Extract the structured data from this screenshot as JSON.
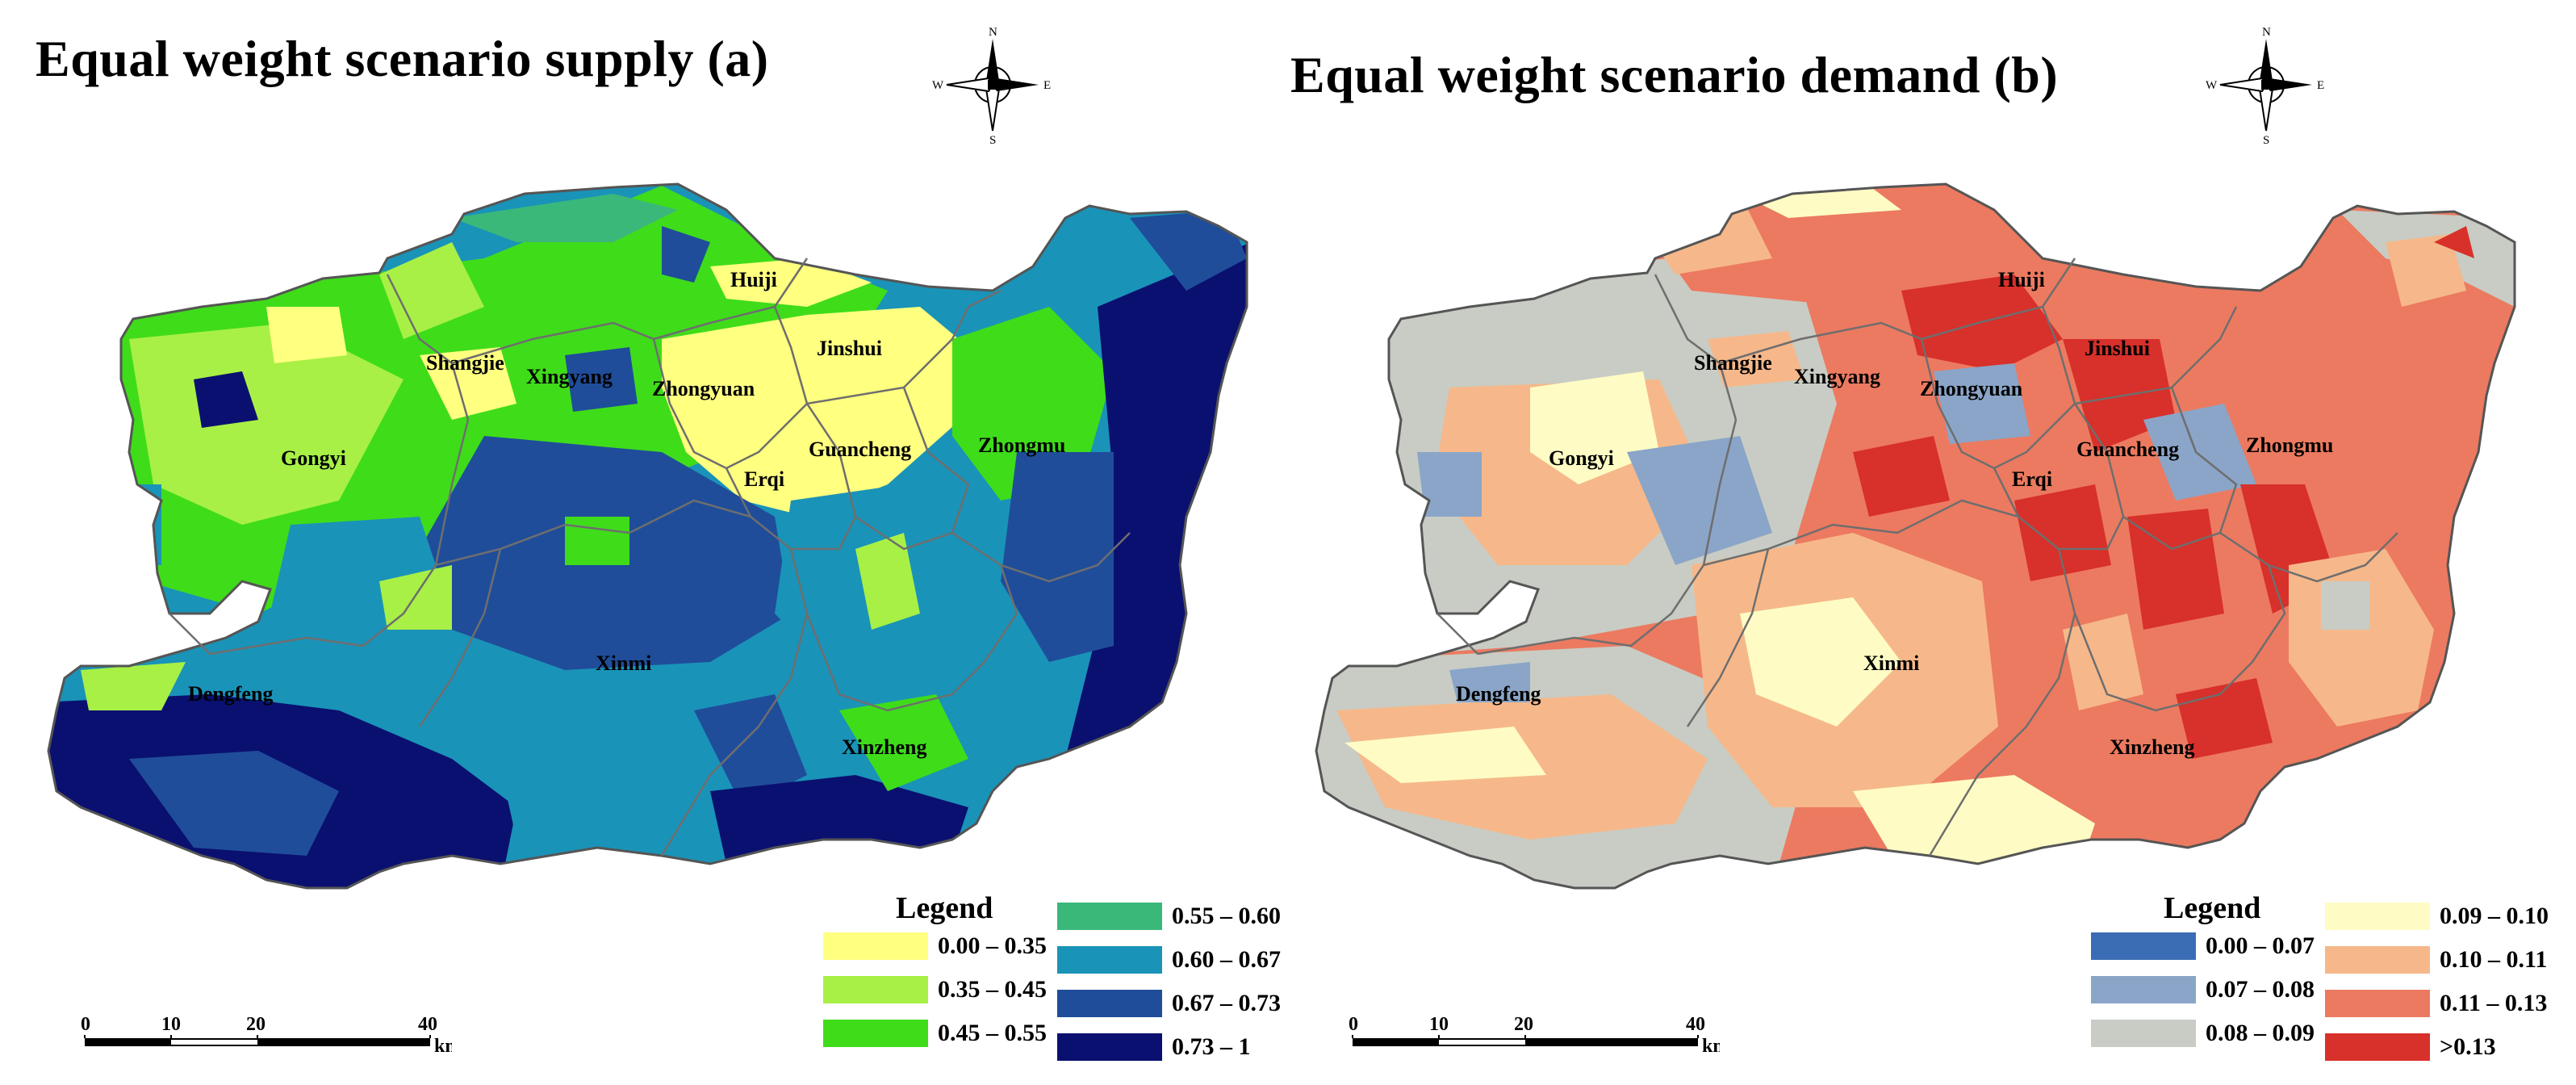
{
  "panels": [
    {
      "title": "Equal weight scenario supply (a)",
      "compass": {
        "n": "N",
        "s": "S",
        "e": "E",
        "w": "W"
      },
      "places": [
        "Huiji",
        "Jinshui",
        "Shangjie",
        "Xingyang",
        "Zhongyuan",
        "Guancheng",
        "Zhongmu",
        "Gongyi",
        "Erqi",
        "Xinmi",
        "Dengfeng",
        "Xinzheng"
      ],
      "legend": {
        "title": "Legend",
        "items": [
          {
            "label": "0.00 – 0.35",
            "color": "#ffff80"
          },
          {
            "label": "0.35 – 0.45",
            "color": "#a8f046"
          },
          {
            "label": "0.45 – 0.55",
            "color": "#3fdc1a"
          },
          {
            "label": "0.55 – 0.60",
            "color": "#3ab87a"
          },
          {
            "label": "0.60 – 0.67",
            "color": "#1a93b8"
          },
          {
            "label": "0.67 – 0.73",
            "color": "#1f4d9a"
          },
          {
            "label": "0.73 – 1",
            "color": "#0a1070"
          }
        ]
      },
      "scale": {
        "ticks": [
          "0",
          "10",
          "20",
          "40"
        ],
        "unit": "km"
      }
    },
    {
      "title": "Equal weight scenario demand (b)",
      "compass": {
        "n": "N",
        "s": "S",
        "e": "E",
        "w": "W"
      },
      "places": [
        "Huiji",
        "Jinshui",
        "Shangjie",
        "Xingyang",
        "Zhongyuan",
        "Guancheng",
        "Zhongmu",
        "Gongyi",
        "Erqi",
        "Xinmi",
        "Dengfeng",
        "Xinzheng"
      ],
      "legend": {
        "title": "Legend",
        "items": [
          {
            "label": "0.00 – 0.07",
            "color": "#3b6db5"
          },
          {
            "label": "0.07 – 0.08",
            "color": "#8aa5c8"
          },
          {
            "label": "0.08 – 0.09",
            "color": "#c8ccc4"
          },
          {
            "label": "0.09 – 0.10",
            "color": "#fefcc4"
          },
          {
            "label": "0.10 – 0.11",
            "color": "#f6b88a"
          },
          {
            "label": "0.11 – 0.13",
            "color": "#ec7a60"
          },
          {
            "label": ">0.13",
            "color": "#d8302a"
          }
        ]
      },
      "scale": {
        "ticks": [
          "0",
          "10",
          "20",
          "40"
        ],
        "unit": "km"
      }
    }
  ]
}
